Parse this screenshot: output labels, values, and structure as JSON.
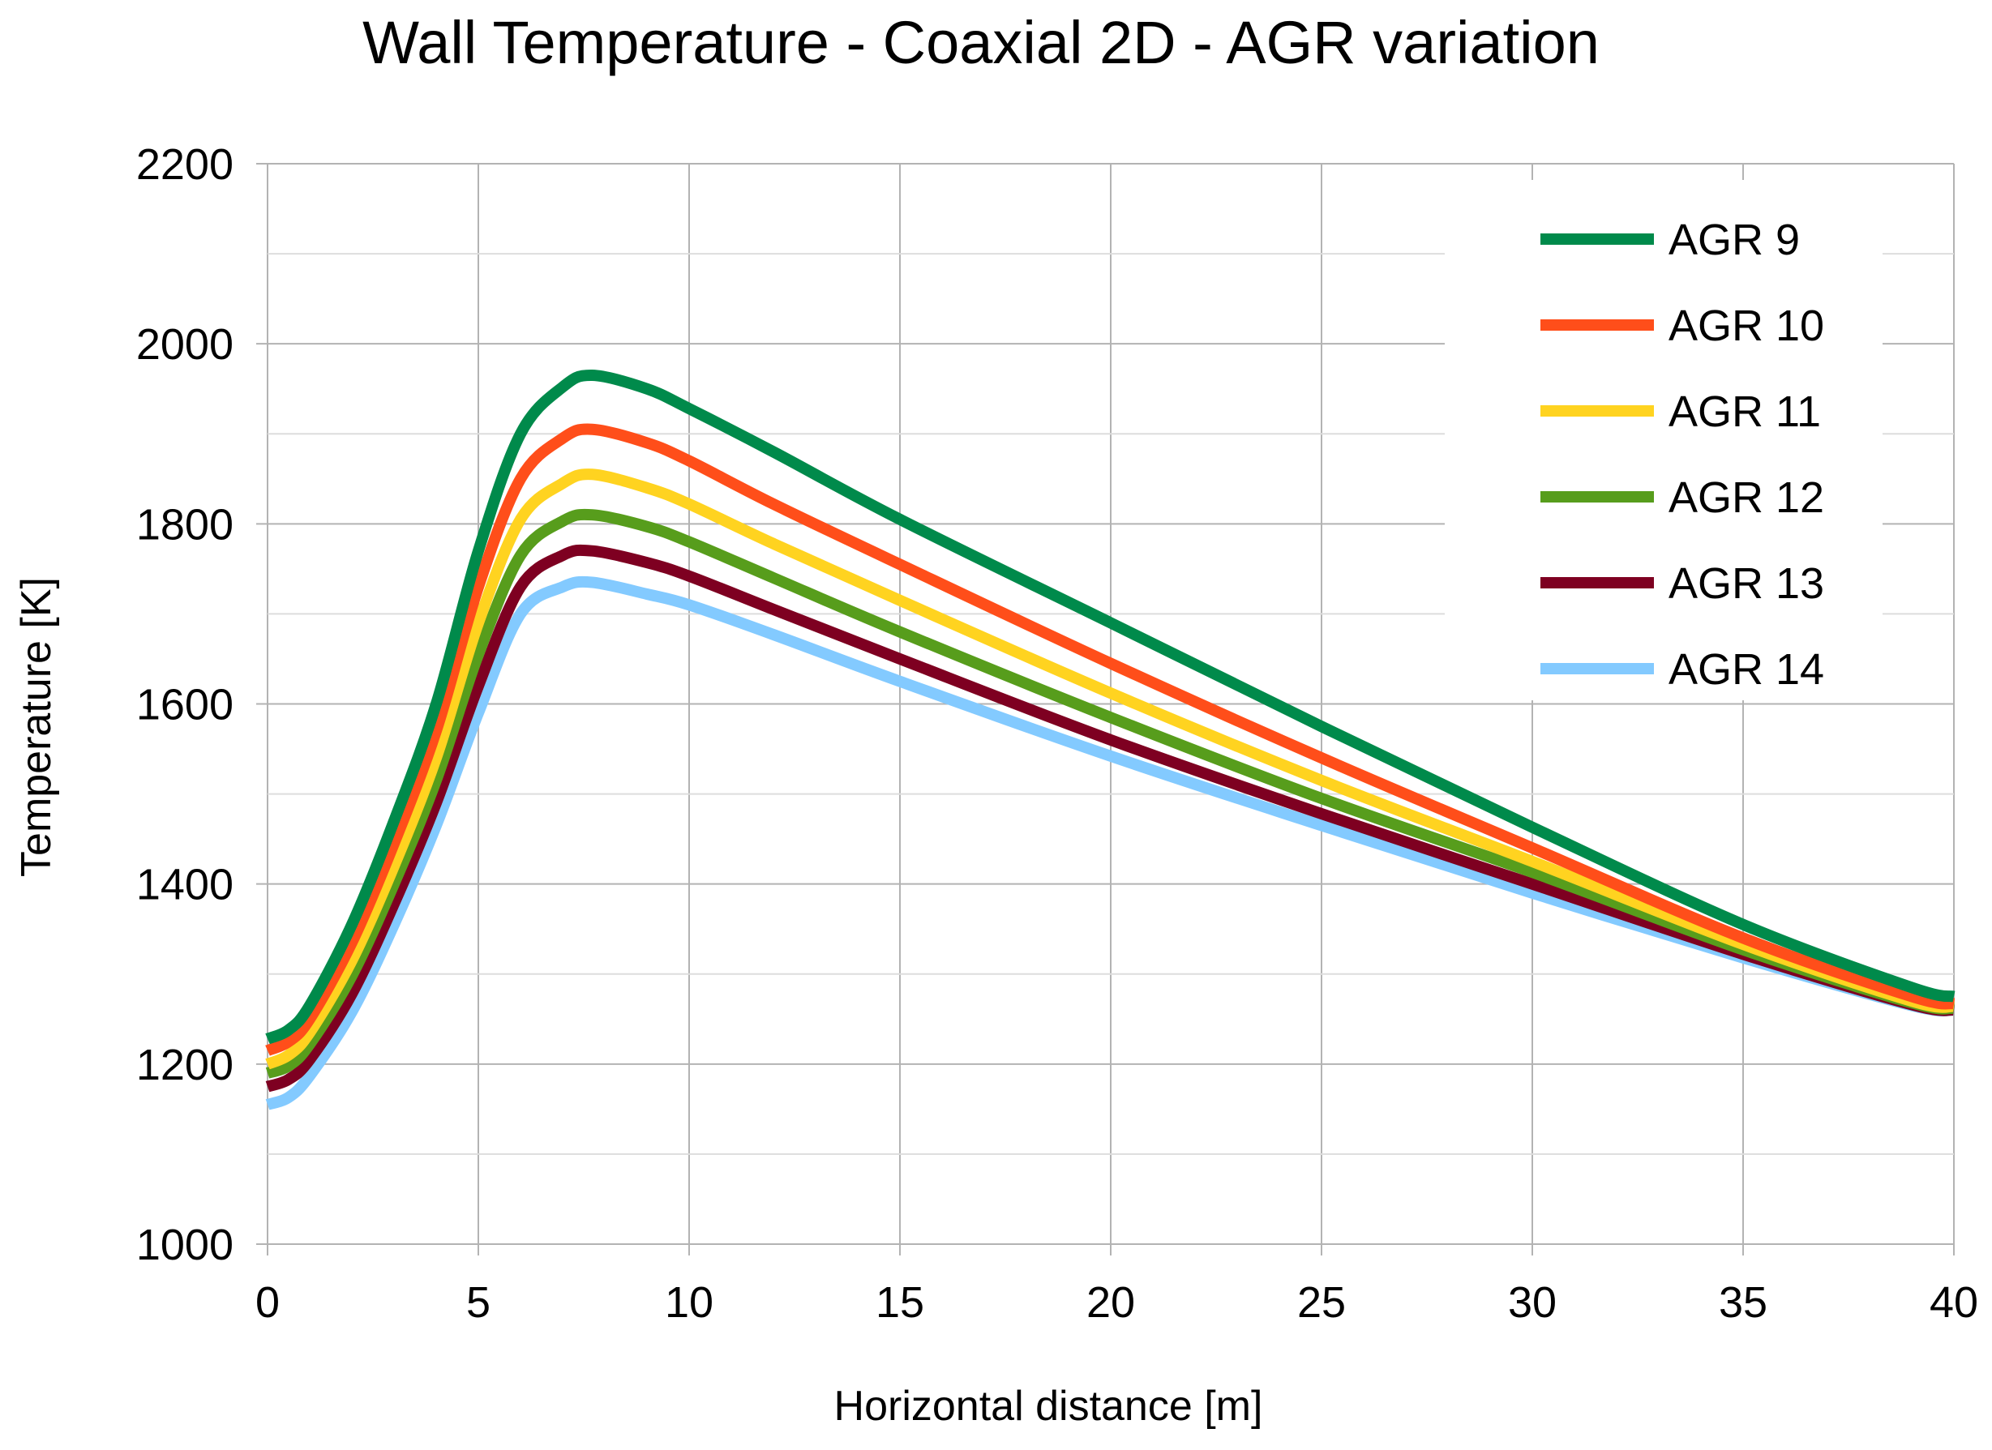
{
  "chart_data": {
    "type": "line",
    "title": "Wall Temperature - Coaxial 2D - AGR variation",
    "xlabel": "Horizontal distance [m]",
    "ylabel": "Temperature [K]",
    "xlim": [
      0,
      40
    ],
    "ylim": [
      1000,
      2200
    ],
    "xticks": [
      "0",
      "5",
      "10",
      "15",
      "20",
      "25",
      "30",
      "35",
      "40"
    ],
    "yticks": [
      "1000",
      "1200",
      "1400",
      "1600",
      "1800",
      "2000",
      "2200"
    ],
    "grid": true,
    "legend_position": "top-right",
    "x": [
      0,
      0.5,
      1,
      2,
      3,
      4,
      5,
      6,
      7,
      7.7,
      9,
      10,
      12,
      15,
      20,
      25,
      30,
      35,
      39,
      40
    ],
    "series": [
      {
        "name": "AGR 9",
        "color": "#008a4b",
        "values": [
          1228,
          1238,
          1265,
          1355,
          1470,
          1600,
          1770,
          1900,
          1952,
          1965,
          1950,
          1928,
          1880,
          1805,
          1690,
          1575,
          1463,
          1355,
          1285,
          1275
        ]
      },
      {
        "name": "AGR 10",
        "color": "#ff4e1a",
        "values": [
          1215,
          1225,
          1250,
          1335,
          1445,
          1570,
          1730,
          1850,
          1895,
          1905,
          1890,
          1870,
          1822,
          1755,
          1645,
          1540,
          1440,
          1340,
          1275,
          1267
        ]
      },
      {
        "name": "AGR 11",
        "color": "#ffd320",
        "values": [
          1200,
          1210,
          1235,
          1315,
          1420,
          1540,
          1690,
          1805,
          1845,
          1855,
          1840,
          1822,
          1778,
          1715,
          1612,
          1515,
          1425,
          1333,
          1270,
          1264
        ]
      },
      {
        "name": "AGR 12",
        "color": "#579d1c",
        "values": [
          1190,
          1198,
          1222,
          1298,
          1400,
          1515,
          1655,
          1765,
          1803,
          1810,
          1797,
          1780,
          1740,
          1680,
          1585,
          1495,
          1413,
          1327,
          1268,
          1262
        ]
      },
      {
        "name": "AGR 13",
        "color": "#7e0021",
        "values": [
          1175,
          1183,
          1205,
          1278,
          1378,
          1490,
          1620,
          1730,
          1765,
          1770,
          1757,
          1742,
          1705,
          1650,
          1560,
          1478,
          1400,
          1322,
          1266,
          1260
        ]
      },
      {
        "name": "AGR 14",
        "color": "#83caff",
        "values": [
          1155,
          1163,
          1187,
          1258,
          1355,
          1465,
          1590,
          1700,
          1730,
          1735,
          1722,
          1710,
          1677,
          1625,
          1542,
          1465,
          1390,
          1318,
          1265,
          1260
        ]
      }
    ]
  }
}
